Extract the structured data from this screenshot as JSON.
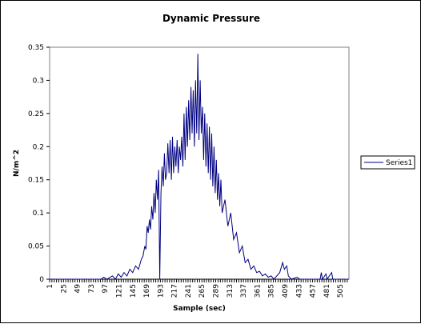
{
  "chart_data": {
    "type": "line",
    "title": "Dynamic Pressure",
    "xlabel": "Sample (sec)",
    "ylabel": "N/m^2",
    "ylim": [
      0,
      0.35
    ],
    "xlim": [
      1,
      520
    ],
    "y_ticks": [
      "0",
      "0.05",
      "0.1",
      "0.15",
      "0.2",
      "0.25",
      "0.3",
      "0.35"
    ],
    "x_ticks": [
      "1",
      "25",
      "49",
      "73",
      "97",
      "121",
      "145",
      "169",
      "193",
      "217",
      "241",
      "265",
      "289",
      "313",
      "337",
      "361",
      "385",
      "409",
      "433",
      "457",
      "481",
      "505"
    ],
    "legend_position": "right",
    "grid": false,
    "line_color": "#000080",
    "series": [
      {
        "name": "Series1",
        "points": [
          [
            1,
            0
          ],
          [
            90,
            0
          ],
          [
            95,
            0.003
          ],
          [
            100,
            0
          ],
          [
            110,
            0.005
          ],
          [
            115,
            0
          ],
          [
            120,
            0.008
          ],
          [
            125,
            0.003
          ],
          [
            130,
            0.01
          ],
          [
            135,
            0.005
          ],
          [
            140,
            0.015
          ],
          [
            145,
            0.01
          ],
          [
            150,
            0.02
          ],
          [
            155,
            0.015
          ],
          [
            160,
            0.03
          ],
          [
            163,
            0.035
          ],
          [
            166,
            0.05
          ],
          [
            168,
            0.045
          ],
          [
            170,
            0.08
          ],
          [
            172,
            0.07
          ],
          [
            174,
            0.09
          ],
          [
            176,
            0.075
          ],
          [
            178,
            0.11
          ],
          [
            180,
            0.09
          ],
          [
            182,
            0.13
          ],
          [
            184,
            0.1
          ],
          [
            186,
            0.15
          ],
          [
            188,
            0.12
          ],
          [
            190,
            0.165
          ],
          [
            192,
            0
          ],
          [
            194,
            0.13
          ],
          [
            196,
            0.17
          ],
          [
            198,
            0.14
          ],
          [
            200,
            0.19
          ],
          [
            202,
            0.15
          ],
          [
            204,
            0.16
          ],
          [
            206,
            0.205
          ],
          [
            208,
            0.16
          ],
          [
            210,
            0.21
          ],
          [
            212,
            0.15
          ],
          [
            214,
            0.215
          ],
          [
            216,
            0.16
          ],
          [
            218,
            0.2
          ],
          [
            220,
            0.17
          ],
          [
            222,
            0.21
          ],
          [
            224,
            0.16
          ],
          [
            226,
            0.2
          ],
          [
            228,
            0.18
          ],
          [
            230,
            0.215
          ],
          [
            232,
            0.17
          ],
          [
            234,
            0.25
          ],
          [
            236,
            0.18
          ],
          [
            238,
            0.26
          ],
          [
            240,
            0.2
          ],
          [
            242,
            0.27
          ],
          [
            244,
            0.21
          ],
          [
            246,
            0.29
          ],
          [
            248,
            0.22
          ],
          [
            250,
            0.285
          ],
          [
            252,
            0.2
          ],
          [
            254,
            0.3
          ],
          [
            256,
            0.22
          ],
          [
            258,
            0.34
          ],
          [
            260,
            0.21
          ],
          [
            262,
            0.3
          ],
          [
            264,
            0.22
          ],
          [
            266,
            0.26
          ],
          [
            268,
            0.18
          ],
          [
            270,
            0.25
          ],
          [
            272,
            0.17
          ],
          [
            274,
            0.235
          ],
          [
            276,
            0.16
          ],
          [
            278,
            0.23
          ],
          [
            280,
            0.15
          ],
          [
            282,
            0.22
          ],
          [
            284,
            0.14
          ],
          [
            286,
            0.2
          ],
          [
            288,
            0.13
          ],
          [
            290,
            0.18
          ],
          [
            292,
            0.12
          ],
          [
            294,
            0.16
          ],
          [
            296,
            0.11
          ],
          [
            298,
            0.15
          ],
          [
            300,
            0.1
          ],
          [
            305,
            0.12
          ],
          [
            310,
            0.08
          ],
          [
            315,
            0.1
          ],
          [
            320,
            0.06
          ],
          [
            325,
            0.07
          ],
          [
            330,
            0.04
          ],
          [
            335,
            0.05
          ],
          [
            340,
            0.025
          ],
          [
            345,
            0.03
          ],
          [
            350,
            0.015
          ],
          [
            355,
            0.02
          ],
          [
            360,
            0.01
          ],
          [
            365,
            0.012
          ],
          [
            370,
            0.005
          ],
          [
            375,
            0.008
          ],
          [
            380,
            0.003
          ],
          [
            385,
            0.005
          ],
          [
            390,
            0
          ],
          [
            400,
            0.01
          ],
          [
            405,
            0.025
          ],
          [
            408,
            0.015
          ],
          [
            412,
            0.02
          ],
          [
            415,
            0.005
          ],
          [
            420,
            0
          ],
          [
            430,
            0.003
          ],
          [
            435,
            0
          ],
          [
            470,
            0
          ],
          [
            472,
            0.01
          ],
          [
            474,
            0
          ],
          [
            480,
            0.008
          ],
          [
            482,
            0
          ],
          [
            490,
            0.01
          ],
          [
            492,
            0
          ],
          [
            520,
            0
          ]
        ]
      }
    ]
  }
}
